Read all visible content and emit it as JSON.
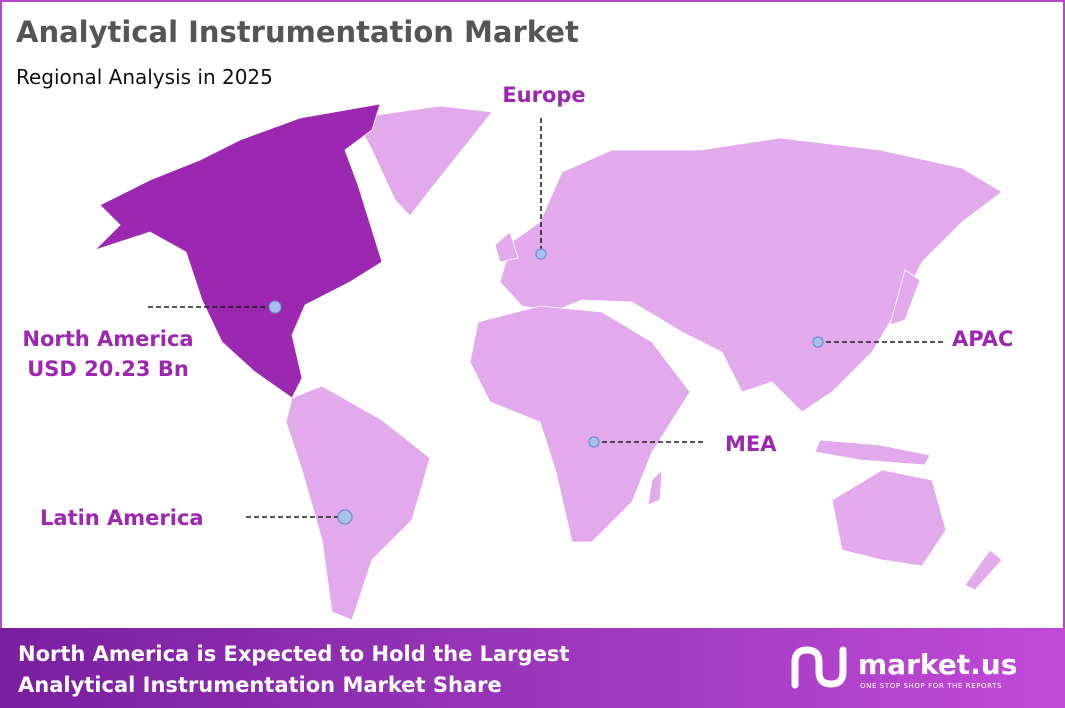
{
  "header": {
    "title": "Analytical Instrumentation Market",
    "subtitle": "Regional Analysis in 2025"
  },
  "regions": [
    {
      "name": "North America",
      "value": "USD 20.23 Bn"
    },
    {
      "name": "Europe"
    },
    {
      "name": "APAC"
    },
    {
      "name": "MEA"
    },
    {
      "name": "Latin America"
    }
  ],
  "footer": {
    "lines": [
      "North America is Expected to Hold the Largest",
      "Analytical Instrumentation Market Share"
    ]
  },
  "logo": {
    "name": "market.us",
    "tagline": "ONE STOP SHOP FOR THE REPORTS"
  }
}
